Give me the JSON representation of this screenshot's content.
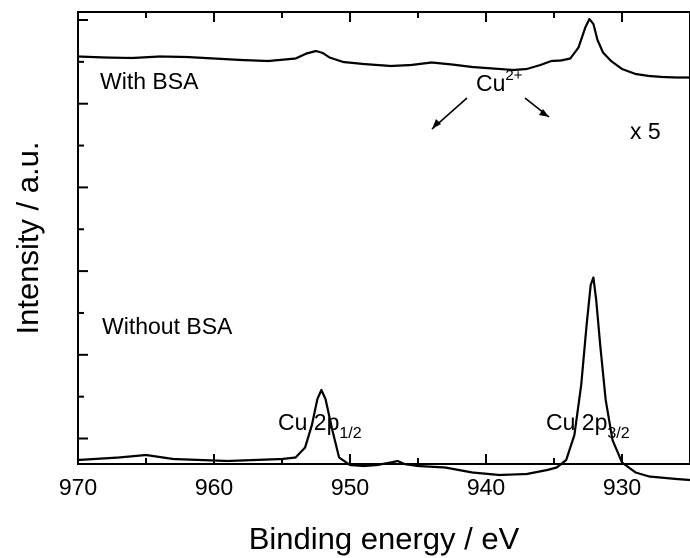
{
  "chart_data": {
    "type": "line",
    "title": "",
    "xlabel": "Binding energy / eV",
    "ylabel": "Intensity / a.u.",
    "xlim": [
      970,
      925
    ],
    "x_reversed": true,
    "y_tick_labels_shown": false,
    "grid": false,
    "x_ticks": [
      970,
      960,
      950,
      940,
      930
    ],
    "x_tick_labels": [
      "970",
      "960",
      "950",
      "940",
      "930"
    ],
    "series": [
      {
        "name": "With BSA",
        "x": [
          970,
          968,
          966,
          964,
          962,
          960,
          958,
          956,
          954,
          953.2,
          952.5,
          952.0,
          951.5,
          950.5,
          949,
          947,
          945.5,
          944,
          942.5,
          941,
          939.5,
          938,
          937,
          936,
          935.2,
          934.5,
          933.8,
          933.2,
          932.7,
          932.4,
          932.1,
          931.8,
          931.4,
          930.8,
          930,
          929,
          928,
          927,
          926,
          925
        ],
        "y": [
          0.87,
          0.85,
          0.84,
          0.87,
          0.86,
          0.83,
          0.8,
          0.78,
          0.83,
          0.93,
          0.98,
          0.94,
          0.85,
          0.76,
          0.72,
          0.68,
          0.7,
          0.75,
          0.71,
          0.66,
          0.63,
          0.6,
          0.62,
          0.7,
          0.78,
          0.79,
          0.83,
          1.05,
          1.45,
          1.62,
          1.52,
          1.2,
          0.95,
          0.78,
          0.62,
          0.52,
          0.48,
          0.46,
          0.45,
          0.45
        ]
      },
      {
        "name": "Without BSA",
        "x": [
          970,
          967,
          965,
          963,
          961,
          959,
          957,
          955,
          954,
          953.3,
          952.8,
          952.4,
          952.1,
          951.8,
          951.3,
          950.8,
          950,
          949,
          948,
          947,
          946.5,
          946,
          945,
          943,
          941,
          939,
          937,
          935.5,
          934.8,
          934.1,
          933.5,
          933.0,
          932.6,
          932.3,
          932.1,
          931.9,
          931.6,
          931.2,
          930.7,
          930,
          929,
          928,
          926,
          925
        ],
        "y": [
          -2.1,
          -2.05,
          -2.0,
          -2.08,
          -2.1,
          -2.12,
          -2.1,
          -2.08,
          -2.05,
          -1.85,
          -1.4,
          -0.88,
          -0.7,
          -0.88,
          -1.5,
          -2.05,
          -2.2,
          -2.22,
          -2.2,
          -2.15,
          -2.12,
          -2.18,
          -2.22,
          -2.25,
          -2.35,
          -2.4,
          -2.38,
          -2.3,
          -2.25,
          -2.1,
          -1.6,
          -0.6,
          0.6,
          1.4,
          1.55,
          1.1,
          0.2,
          -0.9,
          -1.7,
          -2.15,
          -2.35,
          -2.43,
          -2.48,
          -2.5
        ]
      }
    ],
    "annotations": {
      "with_bsa": "With BSA",
      "without_bsa": "Without BSA",
      "cu2_base": "Cu",
      "cu2_sup": "2+",
      "scale_factor": "x 5",
      "cu_2p12_base": "Cu 2p",
      "cu_2p12_sub": "1/2",
      "cu_2p32_base": "Cu 2p",
      "cu_2p32_sub": "3/2"
    }
  }
}
